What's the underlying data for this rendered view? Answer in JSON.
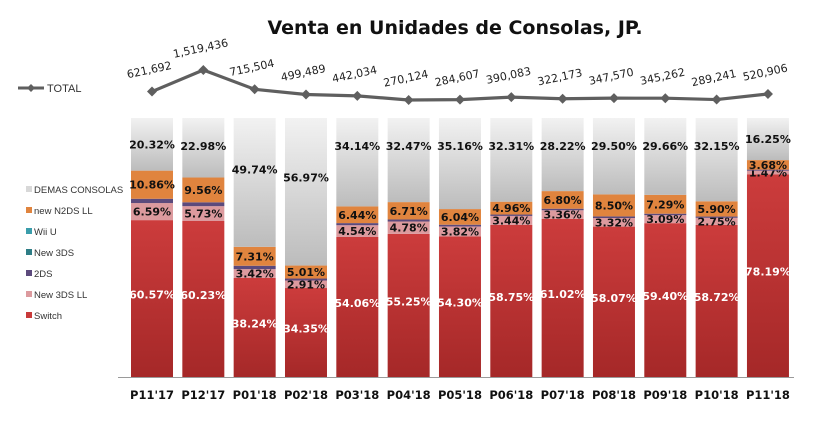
{
  "chart_data": {
    "type": "bar",
    "stacked": "percent",
    "title": "Venta en Unidades de Consolas,  JP.",
    "xlabel": "",
    "ylabel": "",
    "ylim": [
      0,
      100
    ],
    "grid": false,
    "legend_placement": "left",
    "categories": [
      "P11'17",
      "P12'17",
      "P01'18",
      "P02'18",
      "P03'18",
      "P04'18",
      "P05'18",
      "P06'18",
      "P07'18",
      "P08'18",
      "P09'18",
      "P10'18",
      "P11'18"
    ],
    "series": [
      {
        "name": "Switch",
        "color": "#c83a3a",
        "label_color": "#ffffff",
        "values": [
          60.57,
          60.23,
          38.24,
          34.35,
          54.06,
          55.25,
          54.3,
          58.75,
          61.02,
          58.07,
          59.4,
          58.72,
          78.19
        ],
        "labels": [
          "60.57%",
          "60.23%",
          "38.24%",
          "34.35%",
          "54.06%",
          "55.25%",
          "54.30%",
          "58.75%",
          "61.02%",
          "58.07%",
          "59.40%",
          "58.72%",
          "78.19%"
        ]
      },
      {
        "name": "New 3DS LL",
        "color": "#dc9a9e",
        "label_color": "#111111",
        "values": [
          6.59,
          5.73,
          3.42,
          2.91,
          4.54,
          4.78,
          3.82,
          3.44,
          3.36,
          3.32,
          3.09,
          2.75,
          1.47
        ],
        "labels": [
          "6.59%",
          "5.73%",
          "3.42%",
          "2.91%",
          "4.54%",
          "4.78%",
          "3.82%",
          "3.44%",
          "3.36%",
          "3.32%",
          "3.09%",
          "2.75%",
          "1.47%"
        ]
      },
      {
        "name": "2DS",
        "color": "#5c4a7c",
        "label_color": "#ffffff",
        "values": [
          1.66,
          1.5,
          1.29,
          0.76,
          0.82,
          0.79,
          0.68,
          0.54,
          0.6,
          0.61,
          0.56,
          0.48,
          0.41
        ],
        "labels": []
      },
      {
        "name": "New 3DS",
        "color": "#2e7d86",
        "label_color": "#ffffff",
        "values": [
          0,
          0,
          0,
          0,
          0,
          0,
          0,
          0,
          0,
          0,
          0,
          0,
          0
        ],
        "labels": []
      },
      {
        "name": "Wii U",
        "color": "#3a9dab",
        "label_color": "#ffffff",
        "values": [
          0,
          0,
          0,
          0,
          0,
          0,
          0,
          0,
          0,
          0,
          0,
          0,
          0
        ],
        "labels": []
      },
      {
        "name": "new N2DS LL",
        "color": "#e0843e",
        "label_color": "#111111",
        "values": [
          10.86,
          9.56,
          7.31,
          5.01,
          6.44,
          6.71,
          6.04,
          4.96,
          6.8,
          8.5,
          7.29,
          5.9,
          3.68
        ],
        "labels": [
          "10.86%",
          "9.56%",
          "7.31%",
          "5.01%",
          "6.44%",
          "6.71%",
          "6.04%",
          "4.96%",
          "6.80%",
          "8.50%",
          "7.29%",
          "5.90%",
          "3.68%"
        ]
      },
      {
        "name": "DEMAS CONSOLAS",
        "color": "#d4d4d4",
        "label_color": "#111111",
        "values": [
          20.32,
          22.98,
          49.74,
          56.97,
          34.14,
          32.47,
          35.16,
          32.31,
          28.22,
          29.5,
          29.66,
          32.15,
          16.25
        ],
        "labels": [
          "20.32%",
          "22.98%",
          "49.74%",
          "56.97%",
          "34.14%",
          "32.47%",
          "35.16%",
          "32.31%",
          "28.22%",
          "29.50%",
          "29.66%",
          "32.15%",
          "16.25%"
        ]
      }
    ],
    "legend_order": [
      "DEMAS CONSOLAS",
      "new N2DS LL",
      "Wii U",
      "New 3DS",
      "2DS",
      "New 3DS LL",
      "Switch"
    ],
    "line_series": {
      "name": "TOTAL",
      "color": "#5f5f5f",
      "values": [
        621692,
        1519436,
        715504,
        499489,
        442034,
        270124,
        284607,
        390083,
        322173,
        347570,
        345262,
        289241,
        520906
      ],
      "labels": [
        "621,692",
        "1,519,436",
        "715,504",
        "499,489",
        "442,034",
        "270,124",
        "284,607",
        "390,083",
        "322,173",
        "347,570",
        "345,262",
        "289,241",
        "520,906"
      ]
    }
  }
}
